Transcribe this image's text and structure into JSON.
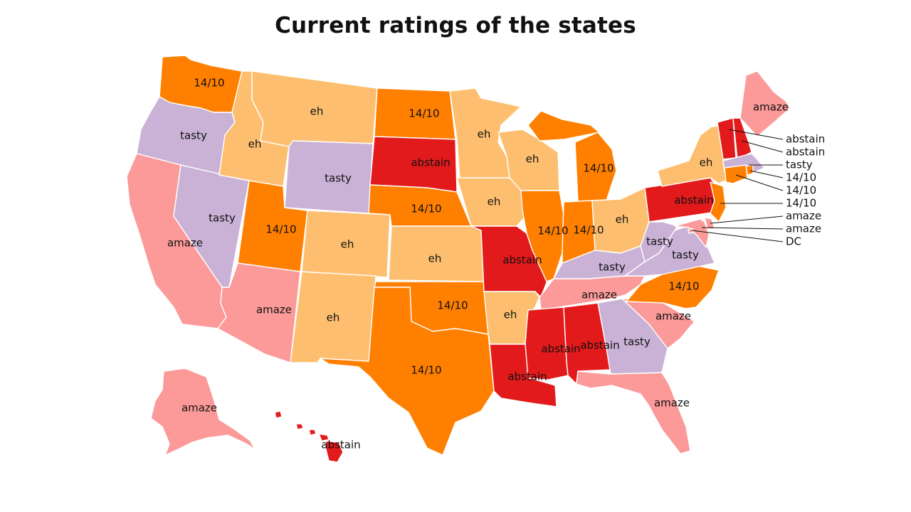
{
  "title": "Current ratings of the states",
  "colors": {
    "14/10": "#ff7f00",
    "abstain": "#e31a1c",
    "amaze": "#fb9a99",
    "eh": "#fdbf6f",
    "tasty": "#cab2d6"
  },
  "states": [
    {
      "code": "WA",
      "rating": "14/10"
    },
    {
      "code": "OR",
      "rating": "tasty"
    },
    {
      "code": "CA",
      "rating": "amaze"
    },
    {
      "code": "NV",
      "rating": "tasty"
    },
    {
      "code": "ID",
      "rating": "eh"
    },
    {
      "code": "MT",
      "rating": "eh"
    },
    {
      "code": "WY",
      "rating": "tasty"
    },
    {
      "code": "UT",
      "rating": "14/10"
    },
    {
      "code": "AZ",
      "rating": "amaze"
    },
    {
      "code": "CO",
      "rating": "eh"
    },
    {
      "code": "NM",
      "rating": "eh"
    },
    {
      "code": "ND",
      "rating": "14/10"
    },
    {
      "code": "SD",
      "rating": "abstain"
    },
    {
      "code": "NE",
      "rating": "14/10"
    },
    {
      "code": "KS",
      "rating": "eh"
    },
    {
      "code": "OK",
      "rating": "14/10"
    },
    {
      "code": "TX",
      "rating": "14/10"
    },
    {
      "code": "MN",
      "rating": "eh"
    },
    {
      "code": "IA",
      "rating": "eh"
    },
    {
      "code": "MO",
      "rating": "abstain"
    },
    {
      "code": "AR",
      "rating": "eh"
    },
    {
      "code": "LA",
      "rating": "abstain"
    },
    {
      "code": "WI",
      "rating": "eh"
    },
    {
      "code": "IL",
      "rating": "14/10"
    },
    {
      "code": "MI",
      "rating": "14/10"
    },
    {
      "code": "IN",
      "rating": "14/10"
    },
    {
      "code": "OH",
      "rating": "eh"
    },
    {
      "code": "KY",
      "rating": "tasty"
    },
    {
      "code": "TN",
      "rating": "amaze"
    },
    {
      "code": "MS",
      "rating": "abstain"
    },
    {
      "code": "AL",
      "rating": "abstain"
    },
    {
      "code": "GA",
      "rating": "tasty"
    },
    {
      "code": "FL",
      "rating": "amaze"
    },
    {
      "code": "SC",
      "rating": "amaze"
    },
    {
      "code": "NC",
      "rating": "14/10"
    },
    {
      "code": "VA",
      "rating": "tasty"
    },
    {
      "code": "WV",
      "rating": "tasty"
    },
    {
      "code": "PA",
      "rating": "abstain"
    },
    {
      "code": "NY",
      "rating": "eh"
    },
    {
      "code": "ME",
      "rating": "amaze"
    },
    {
      "code": "VT",
      "rating": "abstain"
    },
    {
      "code": "NH",
      "rating": "abstain"
    },
    {
      "code": "MA",
      "rating": "tasty"
    },
    {
      "code": "RI",
      "rating": "14/10"
    },
    {
      "code": "CT",
      "rating": "14/10"
    },
    {
      "code": "NJ",
      "rating": "14/10"
    },
    {
      "code": "DE",
      "rating": "amaze"
    },
    {
      "code": "MD",
      "rating": "amaze"
    },
    {
      "code": "DC",
      "rating": "",
      "label": "DC"
    },
    {
      "code": "AK",
      "rating": "amaze"
    },
    {
      "code": "HI",
      "rating": "abstain"
    }
  ]
}
